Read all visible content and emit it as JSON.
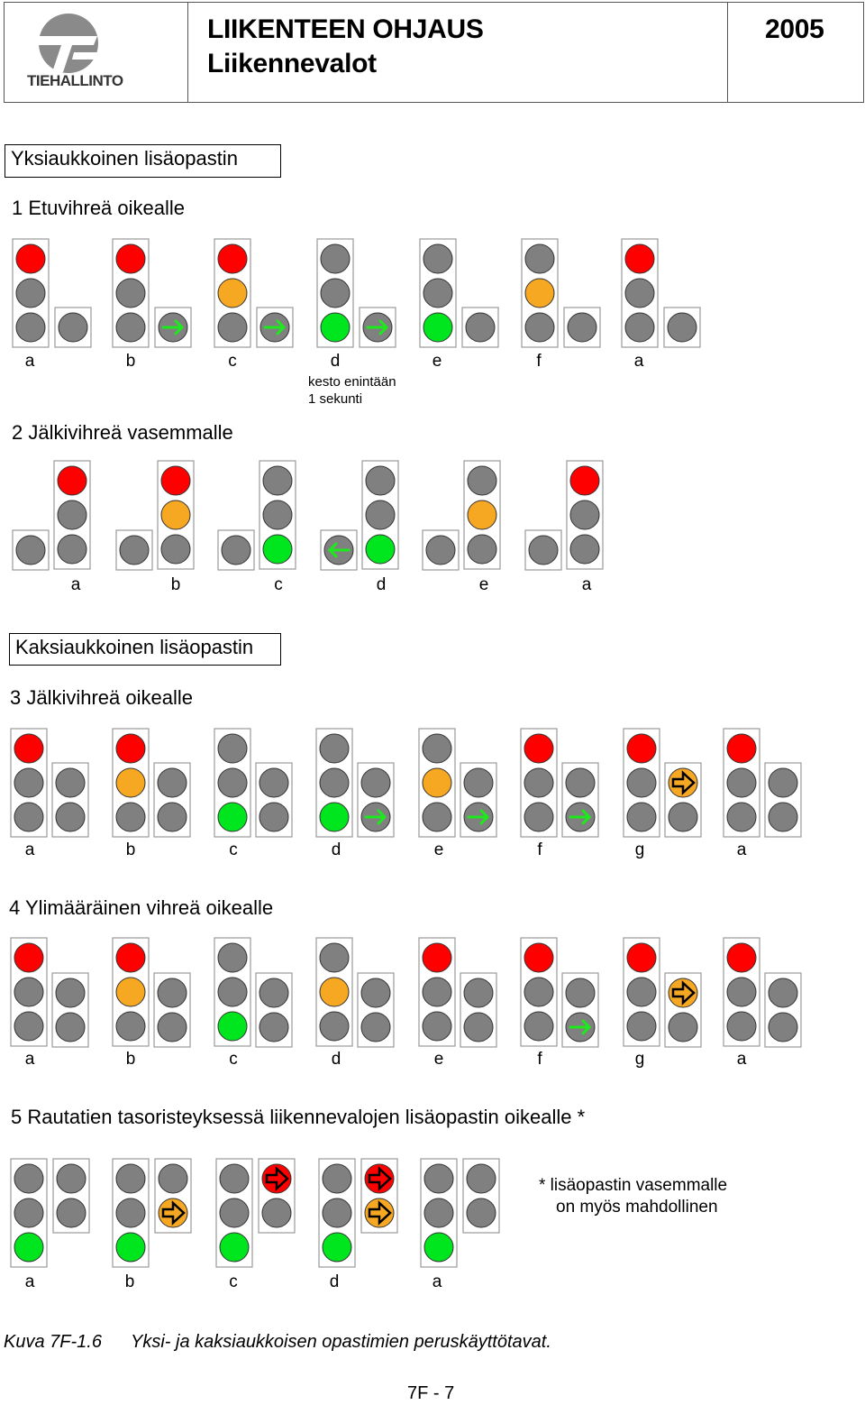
{
  "header": {
    "title_line1": "LIIKENTEEN OHJAUS",
    "title_line2": "Liikennevalot",
    "year": "2005",
    "logo_text": "TIEHALLINTO"
  },
  "section1": {
    "box_label": "Yksiaukkoinen lisäopastin",
    "item1_title": "1  Etuvihreä oikealle",
    "item1_labels": [
      "a",
      "b",
      "c",
      "d",
      "e",
      "f",
      "a"
    ],
    "item1_note_line1": "kesto enintään",
    "item1_note_line2": "1 sekunti",
    "item2_title": "2  Jälkivihreä vasemmalle",
    "item2_labels": [
      "a",
      "b",
      "c",
      "d",
      "e",
      "a"
    ]
  },
  "section2": {
    "box_label": "Kaksiaukkoinen lisäopastin",
    "item3_title": "3  Jälkivihreä oikealle",
    "item3_labels": [
      "a",
      "b",
      "c",
      "d",
      "e",
      "f",
      "g",
      "a"
    ],
    "item4_title": "4  Ylimääräinen vihreä oikealle",
    "item4_labels": [
      "a",
      "b",
      "c",
      "d",
      "e",
      "f",
      "g",
      "a"
    ],
    "item5_title": "5  Rautatien tasoristeyksessä liikennevalojen lisäopastin oikealle *",
    "item5_labels": [
      "a",
      "b",
      "c",
      "d",
      "a"
    ],
    "item5_note_line1": "*  lisäopastin vasemmalle",
    "item5_note_line2": "on myös mahdollinen"
  },
  "caption": {
    "figure_number": "Kuva 7F-1.6",
    "text": "Yksi- ja kaksiaukkoisen opastimien peruskäyttötavat."
  },
  "page_number": "7F - 7",
  "colors": {
    "red": "#ff0000",
    "yellow": "#f7a823",
    "green": "#00e61e",
    "off": "#808080",
    "arrow_green": "#1de91d"
  },
  "signal_states": {
    "item1": [
      {
        "main": [
          "red",
          "off",
          "off"
        ],
        "aux": [
          "off"
        ]
      },
      {
        "main": [
          "red",
          "off",
          "off"
        ],
        "aux": [
          "arrow-green-right"
        ]
      },
      {
        "main": [
          "red",
          "yellow",
          "off"
        ],
        "aux": [
          "arrow-green-right"
        ]
      },
      {
        "main": [
          "off",
          "off",
          "green"
        ],
        "aux": [
          "arrow-green-right"
        ]
      },
      {
        "main": [
          "off",
          "off",
          "green"
        ],
        "aux": [
          "off"
        ]
      },
      {
        "main": [
          "off",
          "yellow",
          "off"
        ],
        "aux": [
          "off"
        ]
      },
      {
        "main": [
          "red",
          "off",
          "off"
        ],
        "aux": [
          "off"
        ]
      }
    ],
    "item2": [
      {
        "main": [
          "red",
          "off",
          "off"
        ],
        "aux": [
          "off"
        ]
      },
      {
        "main": [
          "red",
          "yellow",
          "off"
        ],
        "aux": [
          "off"
        ]
      },
      {
        "main": [
          "off",
          "off",
          "green"
        ],
        "aux": [
          "off"
        ]
      },
      {
        "main": [
          "off",
          "off",
          "green"
        ],
        "aux": [
          "arrow-green-left"
        ]
      },
      {
        "main": [
          "off",
          "yellow",
          "off"
        ],
        "aux": [
          "off"
        ]
      },
      {
        "main": [
          "red",
          "off",
          "off"
        ],
        "aux": [
          "off"
        ]
      }
    ],
    "item3": [
      {
        "main": [
          "red",
          "off",
          "off"
        ],
        "aux": [
          "off",
          "off"
        ]
      },
      {
        "main": [
          "red",
          "yellow",
          "off"
        ],
        "aux": [
          "off",
          "off"
        ]
      },
      {
        "main": [
          "off",
          "off",
          "green"
        ],
        "aux": [
          "off",
          "off"
        ]
      },
      {
        "main": [
          "off",
          "off",
          "green"
        ],
        "aux": [
          "off",
          "arrow-green-right"
        ]
      },
      {
        "main": [
          "off",
          "yellow",
          "off"
        ],
        "aux": [
          "off",
          "arrow-green-right"
        ]
      },
      {
        "main": [
          "red",
          "off",
          "off"
        ],
        "aux": [
          "off",
          "arrow-green-right"
        ]
      },
      {
        "main": [
          "red",
          "off",
          "off"
        ],
        "aux": [
          "arrow-yellow-right",
          "off"
        ]
      },
      {
        "main": [
          "red",
          "off",
          "off"
        ],
        "aux": [
          "off",
          "off"
        ]
      }
    ],
    "item4": [
      {
        "main": [
          "red",
          "off",
          "off"
        ],
        "aux": [
          "off",
          "off"
        ]
      },
      {
        "main": [
          "red",
          "yellow",
          "off"
        ],
        "aux": [
          "off",
          "off"
        ]
      },
      {
        "main": [
          "off",
          "off",
          "green"
        ],
        "aux": [
          "off",
          "off"
        ]
      },
      {
        "main": [
          "off",
          "yellow",
          "off"
        ],
        "aux": [
          "off",
          "off"
        ]
      },
      {
        "main": [
          "red",
          "off",
          "off"
        ],
        "aux": [
          "off",
          "off"
        ]
      },
      {
        "main": [
          "red",
          "off",
          "off"
        ],
        "aux": [
          "off",
          "arrow-green-right"
        ]
      },
      {
        "main": [
          "red",
          "off",
          "off"
        ],
        "aux": [
          "arrow-yellow-right",
          "off"
        ]
      },
      {
        "main": [
          "red",
          "off",
          "off"
        ],
        "aux": [
          "off",
          "off"
        ]
      }
    ],
    "item5": [
      {
        "main": [
          "off",
          "off",
          "green"
        ],
        "aux": [
          "off",
          "off"
        ]
      },
      {
        "main": [
          "off",
          "off",
          "green"
        ],
        "aux": [
          "off",
          "arrow-yellow-right"
        ]
      },
      {
        "main": [
          "off",
          "off",
          "green"
        ],
        "aux": [
          "arrow-red-right",
          "off"
        ]
      },
      {
        "main": [
          "off",
          "off",
          "green"
        ],
        "aux": [
          "arrow-red-right",
          "arrow-yellow-right"
        ]
      },
      {
        "main": [
          "off",
          "off",
          "green"
        ],
        "aux": [
          "off",
          "off"
        ]
      }
    ]
  }
}
